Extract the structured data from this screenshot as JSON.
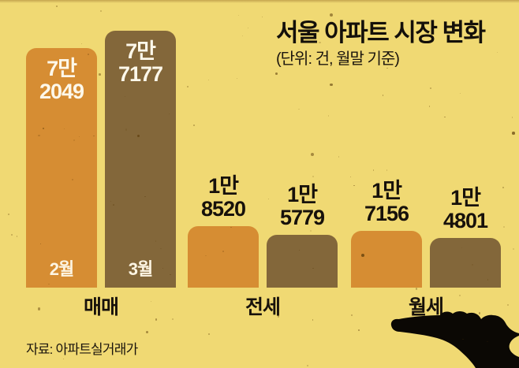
{
  "title": "서울 아파트 시장 변화",
  "subtitle": "(단위: 건, 월말 기준)",
  "source": "자료: 아파트실거래가",
  "colors": {
    "background": "#f0d973",
    "february_bar": "#d68d33",
    "march_bar": "#83673a",
    "dark_text": "#17110b",
    "light_text": "#fdf8ea",
    "hand_silhouette": "#0b0804"
  },
  "chart_data": {
    "type": "bar",
    "title": "서울 아파트 시장 변화",
    "unit_note": "(단위: 건, 월말 기준)",
    "categories": [
      "매매",
      "전세",
      "월세"
    ],
    "series": [
      {
        "name": "2월",
        "color": "#d68d33",
        "values": [
          72049,
          18520,
          17156
        ]
      },
      {
        "name": "3월",
        "color": "#83673a",
        "values": [
          77177,
          15779,
          14801
        ]
      }
    ],
    "value_labels": [
      [
        "7만",
        "2049"
      ],
      [
        "7만",
        "7177"
      ],
      [
        "1만",
        "8520"
      ],
      [
        "1만",
        "5779"
      ],
      [
        "1만",
        "7156"
      ],
      [
        "1만",
        "4801"
      ]
    ],
    "ylim": [
      0,
      77177
    ],
    "legend_position": "in-bar",
    "grid": false
  }
}
